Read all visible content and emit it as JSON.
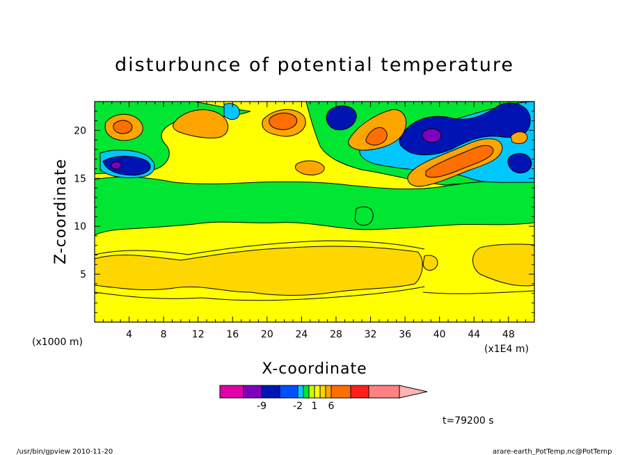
{
  "chart_data": {
    "type": "heatmap",
    "title": "disturbunce of potential temperature",
    "xlabel": "X-coordinate",
    "ylabel": "Z-coordinate",
    "x_unit": "(x1E4 m)",
    "y_unit": "(x1000 m)",
    "xlim": [
      0,
      51
    ],
    "ylim": [
      0,
      23
    ],
    "x_ticks": [
      4,
      8,
      12,
      16,
      20,
      24,
      28,
      32,
      36,
      40,
      44,
      48
    ],
    "x_tick_labels": [
      "4",
      "8",
      "12",
      "16",
      "20",
      "24",
      "28",
      "32",
      "36",
      "40",
      "44",
      "48"
    ],
    "y_ticks": [
      5,
      10,
      15,
      20
    ],
    "y_tick_labels": [
      "5",
      "10",
      "15",
      "20"
    ],
    "colorbar": {
      "colors": [
        "#e000a8",
        "#8000c0",
        "#0014b4",
        "#0050ff",
        "#00c8ff",
        "#00e632",
        "#c8ff00",
        "#ffff00",
        "#ffd700",
        "#ffa500",
        "#ff6e00",
        "#ff1e1e",
        "#ff8080",
        "#ffb4b4"
      ],
      "labeled_values": [
        "-9",
        "-2",
        "1",
        "6"
      ],
      "extend": "max"
    },
    "bands": [
      {
        "name": "bg",
        "color": "#ffff00"
      },
      {
        "name": "lower-warm",
        "color": "#ffd700"
      },
      {
        "name": "mid-green",
        "color": "#00e632"
      },
      {
        "name": "upper-left-cyan",
        "color": "#00c8ff"
      },
      {
        "name": "upper-blue",
        "color": "#0014b4"
      },
      {
        "name": "core-purple",
        "color": "#8000c0"
      },
      {
        "name": "warm-orange",
        "color": "#ffa500"
      },
      {
        "name": "warm-red",
        "color": "#ff6e00"
      }
    ]
  },
  "time_label": "t=79200 s",
  "footer_left": "/usr/bin/gpview   2010-11-20",
  "footer_right": "arare-earth_PotTemp.nc@PotTemp"
}
